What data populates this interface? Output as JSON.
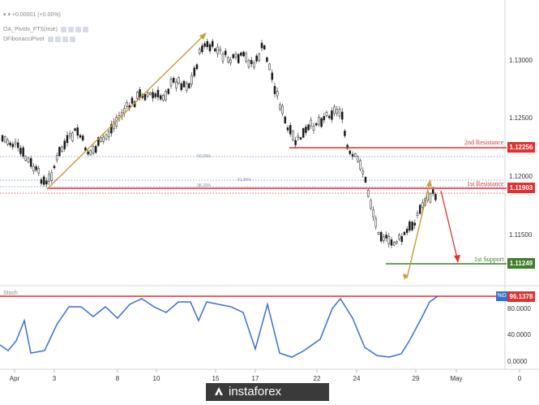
{
  "legend": {
    "symbol_line": "▾ ▾ +0.00001 (+0.00%)",
    "indicator_1": "OA_Pivots_FTS(true)",
    "indicator_2": "DFibonacciPivot"
  },
  "price_axis": {
    "labels": [
      "1.13000",
      "1.12500",
      "1.12000",
      "1.11500"
    ]
  },
  "levels": {
    "resistance_2": {
      "text": "2nd Resistance",
      "price": "1.12256",
      "color": "#e03131"
    },
    "resistance_1": {
      "text": "1st Resistance",
      "price": "1.11903",
      "color": "#e03131"
    },
    "support_1": {
      "text": "1st Support",
      "price": "1.11249",
      "color": "#3f7d2a"
    }
  },
  "fib_labels": {
    "fib_a": "50.00%",
    "fib_b": "61.80%",
    "fib_c": "38.20%"
  },
  "oscillator": {
    "title": "Stoch",
    "labels": [
      "80.0000",
      "40.0000",
      "0.0000"
    ],
    "badge": "%D",
    "value": "96.1378",
    "badge_color": "#3a6fd1",
    "line_color": "#3a6fd1"
  },
  "time_axis": {
    "labels": [
      "Apr",
      "3",
      "8",
      "10",
      "15",
      "17",
      "22",
      "24",
      "29",
      "May",
      "0"
    ]
  },
  "watermark": {
    "text": "instaforex"
  },
  "colors": {
    "candle": "#1a1a1a",
    "trend_arrow": "#c8a040",
    "red_line": "#e03131",
    "green_line": "#3f7d2a",
    "dotted": "#6b8fd6"
  }
}
